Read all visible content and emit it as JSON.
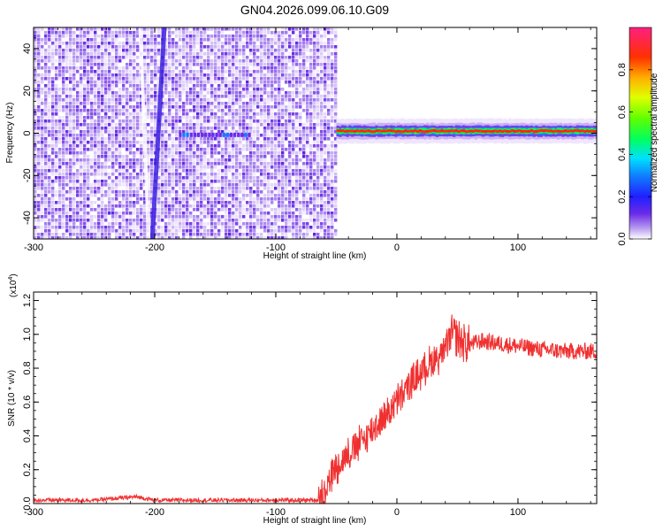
{
  "title": "GN04.2026.099.06.10.G09",
  "top_panel": {
    "xlabel": "Height of straight line (km)",
    "ylabel": "Frequency (Hz)",
    "colorbar_label": "Normalized spectral amplitude",
    "x_ticks": [
      "-300",
      "-200",
      "-100",
      "0",
      "100"
    ],
    "y_ticks": [
      "40",
      "20",
      "0",
      "-20",
      "-40"
    ],
    "colorbar_ticks": [
      "0.0",
      "0.2",
      "0.4",
      "0.6",
      "0.8"
    ]
  },
  "bottom_panel": {
    "xlabel": "Height of straight line (km)",
    "ylabel": "SNR (10 * v/v)",
    "multiplier": "(x10",
    "multiplier_exp": "4",
    "multiplier_close": ")",
    "x_ticks": [
      "-300",
      "-200",
      "-100",
      "0",
      "100"
    ],
    "y_ticks": [
      "0.0",
      "0.2",
      "0.4",
      "0.6",
      "0.8",
      "1.0",
      "1.2"
    ]
  },
  "chart_data": [
    {
      "type": "heatmap",
      "title": "GN04.2026.099.06.10.G09",
      "xlabel": "Height of straight line (km)",
      "ylabel": "Frequency (Hz)",
      "xlim": [
        -300,
        165
      ],
      "ylim": [
        -50,
        50
      ],
      "colorbar": {
        "label": "Normalized spectral amplitude",
        "range": [
          0,
          1
        ],
        "colormap": "rainbow"
      },
      "features": [
        {
          "x_range": [
            -300,
            -50
          ],
          "description": "noise",
          "amplitude": 0.15
        },
        {
          "x_range": [
            -50,
            165
          ],
          "frequency": 1,
          "amplitude": 0.95
        }
      ]
    },
    {
      "type": "line",
      "xlabel": "Height of straight line (km)",
      "ylabel": "SNR (10 * v/v)",
      "xlim": [
        -300,
        165
      ],
      "ylim": [
        0,
        1.25
      ],
      "y_multiplier": 10000,
      "color": "#f03030",
      "series": [
        {
          "x": [
            -300,
            -250,
            -215,
            -200,
            -150,
            -100,
            -65,
            -60,
            -55,
            -50,
            -40,
            -30,
            -20,
            -10,
            0,
            10,
            20,
            30,
            40,
            45,
            50,
            55,
            60,
            70,
            80,
            100,
            120,
            140,
            165
          ],
          "values": [
            0.02,
            0.02,
            0.04,
            0.02,
            0.02,
            0.02,
            0.02,
            0.08,
            0.15,
            0.22,
            0.3,
            0.36,
            0.44,
            0.52,
            0.6,
            0.7,
            0.78,
            0.85,
            0.9,
            1.0,
            0.98,
            0.95,
            0.94,
            0.96,
            0.95,
            0.93,
            0.91,
            0.9,
            0.9
          ]
        }
      ]
    }
  ]
}
